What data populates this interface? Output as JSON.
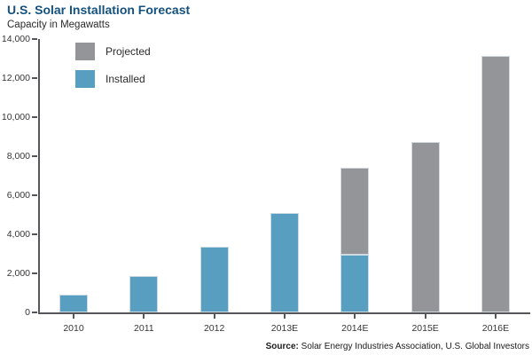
{
  "header": {
    "title": "U.S. Solar Installation Forecast",
    "subtitle": "Capacity in Megawatts"
  },
  "legend": [
    {
      "label": "Projected",
      "color": "#939598"
    },
    {
      "label": "Installed",
      "color": "#579EC0"
    }
  ],
  "source": {
    "label": "Source:",
    "text": " Solar Energy Industries Association, U.S. Global Investors"
  },
  "colors": {
    "title": "#15517F",
    "axis": "#55565A",
    "installed": "#579EC0",
    "projected": "#939598"
  },
  "chart_data": {
    "type": "bar",
    "stacked": true,
    "title": "U.S. Solar Installation Forecast",
    "subtitle": "Capacity in Megawatts",
    "xlabel": "",
    "ylabel": "Capacity in Megawatts",
    "categories": [
      "2010",
      "2011",
      "2012",
      "2013E",
      "2014E",
      "2015E",
      "2016E"
    ],
    "series": [
      {
        "name": "Installed",
        "color": "#579EC0",
        "values": [
          890,
          1850,
          3350,
          5100,
          2950,
          0,
          0
        ]
      },
      {
        "name": "Projected",
        "color": "#939598",
        "values": [
          0,
          0,
          0,
          0,
          4450,
          8750,
          13150
        ]
      }
    ],
    "totals": [
      890,
      1850,
      3350,
      5100,
      7400,
      8750,
      13150
    ],
    "ylim": [
      0,
      14000
    ],
    "ytick_step": 2000,
    "ytick_labels": [
      "0",
      "2,000",
      "4,000",
      "6,000",
      "8,000",
      "10,000",
      "12,000",
      "14,000"
    ],
    "grid": false,
    "legend_position": "top-left-inside"
  }
}
